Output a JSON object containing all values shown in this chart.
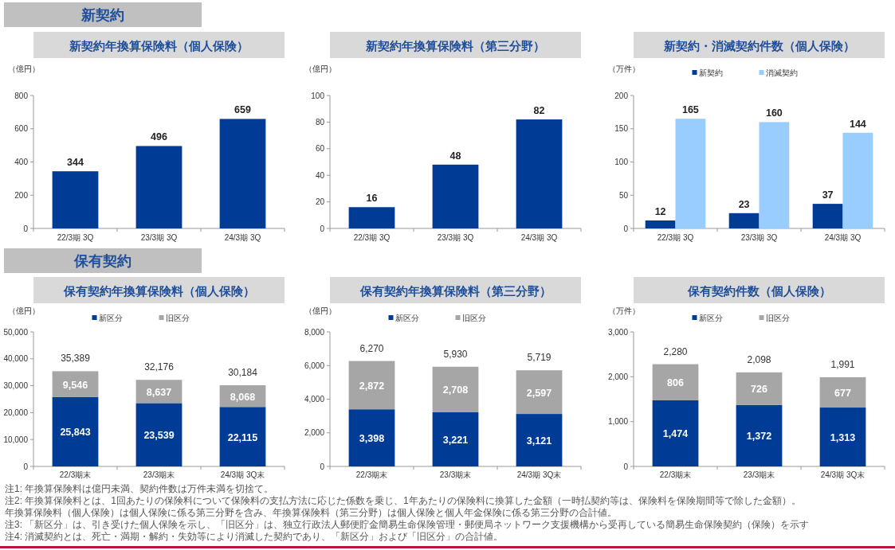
{
  "chart_data": [
    {
      "type": "other",
      "title": "新契約"
    },
    {
      "type": "bar",
      "title": "新契約年換算保険料（個人保険）",
      "ylabel": "（億円）",
      "categories": [
        "22/3期 3Q",
        "23/3期 3Q",
        "24/3期 3Q"
      ],
      "values": [
        344,
        496,
        659
      ],
      "color": "#003b95",
      "ylim": [
        0,
        800
      ],
      "yticks": [
        0,
        200,
        400,
        600,
        800
      ],
      "data_labels": true,
      "grid": false,
      "legend": false
    },
    {
      "type": "bar",
      "title": "新契約年換算保険料（第三分野）",
      "ylabel": "（億円）",
      "categories": [
        "22/3期 3Q",
        "23/3期 3Q",
        "24/3期 3Q"
      ],
      "values": [
        16,
        48,
        82
      ],
      "color": "#003b95",
      "ylim": [
        0,
        100
      ],
      "yticks": [
        0,
        20,
        40,
        60,
        80,
        100
      ],
      "data_labels": true,
      "grid": false,
      "legend": false
    },
    {
      "type": "bar",
      "title": "新契約・消滅契約件数（個人保険）",
      "ylabel": "（万件）",
      "categories": [
        "22/3期 3Q",
        "23/3期 3Q",
        "24/3期 3Q"
      ],
      "series": [
        {
          "name": "新契約",
          "color": "#003b95",
          "values": [
            12,
            23,
            37
          ]
        },
        {
          "name": "消滅契約",
          "color": "#99ccff",
          "values": [
            165,
            160,
            144
          ]
        }
      ],
      "ylim": [
        0,
        200
      ],
      "yticks": [
        0,
        50,
        100,
        150,
        200
      ],
      "data_labels": true,
      "grid": false,
      "legend": "top"
    },
    {
      "type": "other",
      "title": "保有契約"
    },
    {
      "type": "bar",
      "stacked": true,
      "title": "保有契約年換算保険料（個人保険）",
      "ylabel": "（億円）",
      "categories": [
        "22/3期末",
        "23/3期末",
        "24/3期 3Q末"
      ],
      "series": [
        {
          "name": "新区分",
          "color": "#003b95",
          "values": [
            25843,
            23539,
            22115
          ],
          "value_labels": [
            "25,843",
            "23,539",
            "22,115"
          ]
        },
        {
          "name": "旧区分",
          "color": "#a6a6a6",
          "values": [
            9546,
            8637,
            8068
          ],
          "value_labels": [
            "9,546",
            "8,637",
            "8,068"
          ]
        }
      ],
      "totals": [
        "35,389",
        "32,176",
        "30,184"
      ],
      "ylim": [
        0,
        50000
      ],
      "yticks": [
        0,
        {
          "value": 10000,
          "label": "10,000"
        },
        {
          "value": 20000,
          "label": "20,000"
        },
        {
          "value": 30000,
          "label": "30,000"
        },
        {
          "value": 40000,
          "label": "40,000"
        },
        {
          "value": 50000,
          "label": "50,000"
        }
      ],
      "grid": false,
      "legend": "top"
    },
    {
      "type": "bar",
      "stacked": true,
      "title": "保有契約年換算保険料（第三分野）",
      "ylabel": "（億円）",
      "categories": [
        "22/3期末",
        "23/3期末",
        "24/3期 3Q末"
      ],
      "series": [
        {
          "name": "新区分",
          "color": "#003b95",
          "values": [
            3398,
            3221,
            3121
          ],
          "value_labels": [
            "3,398",
            "3,221",
            "3,121"
          ]
        },
        {
          "name": "旧区分",
          "color": "#a6a6a6",
          "values": [
            2872,
            2708,
            2597
          ],
          "value_labels": [
            "2,872",
            "2,708",
            "2,597"
          ]
        }
      ],
      "totals": [
        "6,270",
        "5,930",
        "5,719"
      ],
      "ylim": [
        0,
        8000
      ],
      "yticks": [
        0,
        {
          "value": 2000,
          "label": "2,000"
        },
        {
          "value": 4000,
          "label": "4,000"
        },
        {
          "value": 6000,
          "label": "6,000"
        },
        {
          "value": 8000,
          "label": "8,000"
        }
      ],
      "grid": false,
      "legend": "top"
    },
    {
      "type": "bar",
      "stacked": true,
      "title": "保有契約件数（個人保険）",
      "ylabel": "（万件）",
      "categories": [
        "22/3期末",
        "23/3期末",
        "24/3期 3Q末"
      ],
      "series": [
        {
          "name": "新区分",
          "color": "#003b95",
          "values": [
            1474,
            1372,
            1313
          ],
          "value_labels": [
            "1,474",
            "1,372",
            "1,313"
          ]
        },
        {
          "name": "旧区分",
          "color": "#a6a6a6",
          "values": [
            806,
            726,
            677
          ],
          "value_labels": [
            "806",
            "726",
            "677"
          ]
        }
      ],
      "totals": [
        "2,280",
        "2,098",
        "1,991"
      ],
      "ylim": [
        0,
        3000
      ],
      "yticks": [
        0,
        {
          "value": 1000,
          "label": "1,000"
        },
        {
          "value": 2000,
          "label": "2,000"
        },
        {
          "value": 3000,
          "label": "3,000"
        }
      ],
      "grid": false,
      "legend": "top"
    },
    {
      "type": "other",
      "annotations": [
        "注1: 年換算保険料は億円未満、契約件数は万件未満を切捨て。",
        "注2: 年換算保険料とは、1回あたりの保険料について保険料の支払方法に応じた係数を乗じ、1年あたりの保険料に換算した金額（一時払契約等は、保険料を保険期間等で除した金額）。",
        "年換算保険料（個人保険）は個人保険に係る第三分野を含み、年換算保険料（第三分野）は個人保険と個人年金保険に係る第三分野の合計値。",
        "注3: 「新区分」は、引き受けた個人保険を示し、「旧区分」は、独立行政法人郵便貯金簡易生命保険管理・郵便局ネットワーク支援機構から受再している簡易生命保険契約（保険）を示す",
        "注4: 消滅契約とは、死亡・満期・解約・失効等により消滅した契約であり、「新区分」および「旧区分」の合計値。"
      ]
    }
  ]
}
